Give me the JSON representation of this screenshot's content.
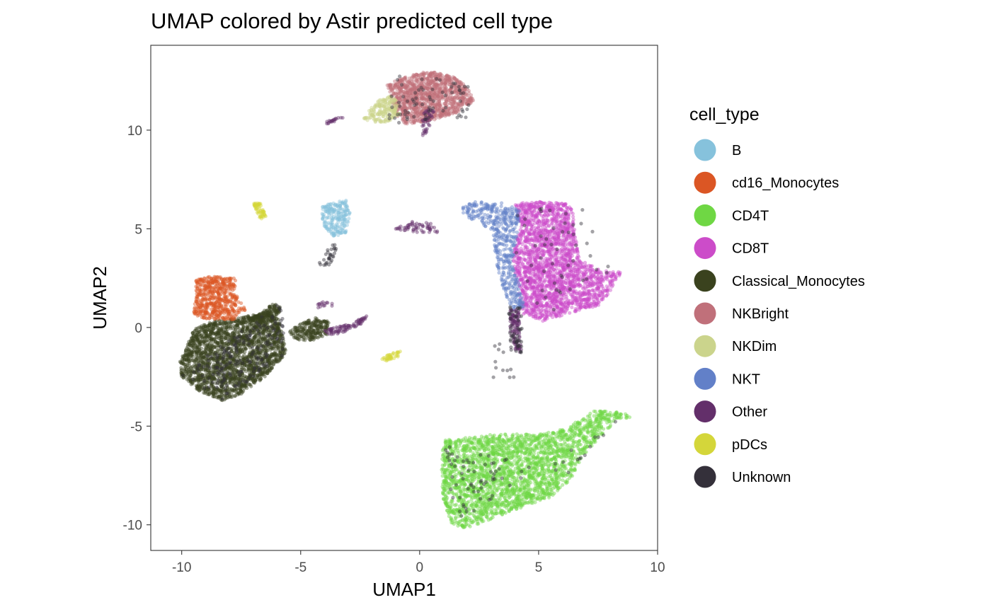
{
  "chart_data": {
    "type": "scatter",
    "title": "UMAP colored by Astir predicted cell type",
    "xlabel": "UMAP1",
    "ylabel": "UMAP2",
    "xlim": [
      -11.3,
      10.0
    ],
    "ylim": [
      -11.3,
      14.3
    ],
    "xticks": [
      -10,
      -5,
      0,
      5,
      10
    ],
    "xtick_labels": [
      "-10",
      "-5",
      "0",
      "5",
      "10"
    ],
    "yticks": [
      -10,
      -5,
      0,
      5,
      10
    ],
    "ytick_labels": [
      "-10",
      "-5",
      "0",
      "5",
      "10"
    ],
    "grid": false,
    "legend": {
      "title": "cell_type",
      "placement": "right",
      "entries": [
        {
          "label": "B",
          "color": "#86c2dc"
        },
        {
          "label": "cd16_Monocytes",
          "color": "#db5624"
        },
        {
          "label": "CD4T",
          "color": "#6fd744"
        },
        {
          "label": "CD8T",
          "color": "#cc4cc9"
        },
        {
          "label": "Classical_Monocytes",
          "color": "#3a421e"
        },
        {
          "label": "NKBright",
          "color": "#c0707a"
        },
        {
          "label": "NKDim",
          "color": "#cbd48c"
        },
        {
          "label": "NKT",
          "color": "#6280c8"
        },
        {
          "label": "Other",
          "color": "#632f6a"
        },
        {
          "label": "pDCs",
          "color": "#d4d63a"
        },
        {
          "label": "Unknown",
          "color": "#34303a"
        }
      ]
    },
    "series": [
      {
        "name": "Classical_Monocytes",
        "color": "#3a421e",
        "regions": [
          {
            "polygon": [
              [
                -9.8,
                -1.0
              ],
              [
                -9.5,
                -0.1
              ],
              [
                -8.8,
                0.3
              ],
              [
                -7.5,
                0.5
              ],
              [
                -6.4,
                0.8
              ],
              [
                -5.9,
                0.4
              ],
              [
                -5.6,
                -1.3
              ],
              [
                -6.5,
                -2.5
              ],
              [
                -7.5,
                -3.4
              ],
              [
                -8.3,
                -3.7
              ],
              [
                -9.3,
                -3.2
              ],
              [
                -10.0,
                -2.5
              ],
              [
                -10.1,
                -1.8
              ]
            ],
            "n": 2200
          },
          {
            "polygon": [
              [
                -7.2,
                0.4
              ],
              [
                -6.6,
                0.8
              ],
              [
                -6.2,
                1.2
              ],
              [
                -5.8,
                1.1
              ],
              [
                -6.0,
                0.5
              ],
              [
                -6.6,
                0.2
              ]
            ],
            "n": 150
          },
          {
            "polygon": [
              [
                -5.5,
                -0.2
              ],
              [
                -5.0,
                0.2
              ],
              [
                -4.4,
                0.5
              ],
              [
                -3.8,
                0.3
              ],
              [
                -3.9,
                -0.4
              ],
              [
                -4.6,
                -0.7
              ],
              [
                -5.3,
                -0.6
              ]
            ],
            "n": 220
          }
        ]
      },
      {
        "name": "cd16_Monocytes",
        "color": "#db5624",
        "regions": [
          {
            "polygon": [
              [
                -9.5,
                0.6
              ],
              [
                -9.4,
                1.7
              ],
              [
                -9.4,
                2.5
              ],
              [
                -8.6,
                2.6
              ],
              [
                -7.7,
                2.5
              ],
              [
                -7.8,
                1.8
              ],
              [
                -7.3,
                0.9
              ],
              [
                -7.8,
                0.4
              ],
              [
                -8.8,
                0.4
              ]
            ],
            "n": 550
          }
        ]
      },
      {
        "name": "NKBright",
        "color": "#c0707a",
        "regions": [
          {
            "polygon": [
              [
                -1.2,
                11.6
              ],
              [
                -1.4,
                12.3
              ],
              [
                -0.6,
                12.7
              ],
              [
                0.4,
                13.0
              ],
              [
                1.4,
                12.7
              ],
              [
                2.0,
                12.2
              ],
              [
                2.3,
                11.5
              ],
              [
                1.6,
                10.9
              ],
              [
                0.6,
                10.5
              ],
              [
                -0.6,
                10.3
              ],
              [
                -1.1,
                10.9
              ]
            ],
            "n": 1200
          }
        ]
      },
      {
        "name": "NKDim",
        "color": "#cbd48c",
        "regions": [
          {
            "polygon": [
              [
                -2.4,
                10.6
              ],
              [
                -2.0,
                11.2
              ],
              [
                -1.5,
                11.8
              ],
              [
                -1.0,
                11.6
              ],
              [
                -0.8,
                10.8
              ],
              [
                -1.4,
                10.4
              ],
              [
                -2.1,
                10.4
              ]
            ],
            "n": 200
          }
        ]
      },
      {
        "name": "B",
        "color": "#86c2dc",
        "regions": [
          {
            "polygon": [
              [
                -4.1,
                6.1
              ],
              [
                -3.6,
                6.4
              ],
              [
                -3.1,
                6.5
              ],
              [
                -2.9,
                5.8
              ],
              [
                -3.1,
                4.8
              ],
              [
                -3.6,
                4.6
              ],
              [
                -4.0,
                5.1
              ],
              [
                -4.1,
                5.6
              ]
            ],
            "n": 220
          }
        ]
      },
      {
        "name": "pDCs",
        "color": "#d4d63a",
        "regions": [
          {
            "polygon": [
              [
                -7.0,
                6.3
              ],
              [
                -6.7,
                6.3
              ],
              [
                -6.5,
                5.8
              ],
              [
                -6.4,
                5.5
              ],
              [
                -6.7,
                5.5
              ],
              [
                -6.9,
                5.9
              ]
            ],
            "n": 60
          },
          {
            "polygon": [
              [
                -1.6,
                -1.6
              ],
              [
                -1.2,
                -1.3
              ],
              [
                -0.8,
                -1.2
              ],
              [
                -0.9,
                -1.5
              ],
              [
                -1.4,
                -1.7
              ]
            ],
            "n": 40
          }
        ]
      },
      {
        "name": "CD8T",
        "color": "#cc4cc9",
        "regions": [
          {
            "polygon": [
              [
                4.0,
                6.3
              ],
              [
                5.6,
                6.4
              ],
              [
                6.4,
                6.2
              ],
              [
                6.5,
                5.2
              ],
              [
                6.7,
                3.5
              ],
              [
                7.6,
                2.9
              ],
              [
                8.5,
                2.8
              ],
              [
                8.0,
                1.8
              ],
              [
                7.5,
                1.1
              ],
              [
                6.5,
                0.8
              ],
              [
                5.2,
                0.3
              ],
              [
                4.3,
                0.7
              ],
              [
                4.1,
                2.2
              ],
              [
                3.9,
                3.6
              ],
              [
                4.2,
                5.0
              ]
            ],
            "n": 2200
          }
        ]
      },
      {
        "name": "NKT",
        "color": "#6280c8",
        "regions": [
          {
            "polygon": [
              [
                1.7,
                6.0
              ],
              [
                2.3,
                6.4
              ],
              [
                3.6,
                6.3
              ],
              [
                4.2,
                5.9
              ],
              [
                4.1,
                4.6
              ],
              [
                3.9,
                3.3
              ],
              [
                4.2,
                2.2
              ],
              [
                4.4,
                1.0
              ],
              [
                3.9,
                0.9
              ],
              [
                3.5,
                2.0
              ],
              [
                3.2,
                3.4
              ],
              [
                3.1,
                4.7
              ],
              [
                2.6,
                5.3
              ],
              [
                1.9,
                5.6
              ]
            ],
            "n": 480
          }
        ]
      },
      {
        "name": "CD4T",
        "color": "#6fd744",
        "regions": [
          {
            "polygon": [
              [
                1.0,
                -5.7
              ],
              [
                0.9,
                -7.2
              ],
              [
                1.0,
                -8.8
              ],
              [
                1.3,
                -9.9
              ],
              [
                1.9,
                -10.2
              ],
              [
                2.6,
                -9.9
              ],
              [
                4.1,
                -9.2
              ],
              [
                5.5,
                -8.6
              ],
              [
                6.3,
                -7.8
              ],
              [
                6.9,
                -6.5
              ],
              [
                7.6,
                -5.5
              ],
              [
                8.3,
                -4.7
              ],
              [
                9.0,
                -4.5
              ],
              [
                8.5,
                -4.3
              ],
              [
                7.3,
                -4.2
              ],
              [
                6.2,
                -5.1
              ],
              [
                5.0,
                -5.4
              ],
              [
                3.2,
                -5.4
              ],
              [
                1.8,
                -5.6
              ]
            ],
            "n": 2600
          }
        ]
      },
      {
        "name": "Other",
        "color": "#632f6a",
        "regions": [
          {
            "polygon": [
              [
                3.8,
                0.9
              ],
              [
                4.2,
                0.9
              ],
              [
                4.2,
                -0.4
              ],
              [
                4.3,
                -1.3
              ],
              [
                4.0,
                -1.2
              ],
              [
                3.8,
                -0.2
              ]
            ],
            "n": 120
          },
          {
            "polygon": [
              [
                -4.0,
                -0.1
              ],
              [
                -3.2,
                0.1
              ],
              [
                -2.2,
                0.6
              ],
              [
                -2.4,
                0.2
              ],
              [
                -3.3,
                -0.3
              ],
              [
                -3.9,
                -0.4
              ]
            ],
            "n": 90
          },
          {
            "polygon": [
              [
                0.1,
                11.0
              ],
              [
                0.7,
                11.1
              ],
              [
                0.4,
                10.0
              ],
              [
                0.1,
                9.6
              ]
            ],
            "n": 40
          },
          {
            "polygon": [
              [
                -4.0,
                10.4
              ],
              [
                -3.3,
                10.7
              ],
              [
                -3.2,
                10.6
              ],
              [
                -3.9,
                10.3
              ]
            ],
            "n": 20
          },
          {
            "polygon": [
              [
                -1.2,
                5.0
              ],
              [
                -0.6,
                5.4
              ],
              [
                0.5,
                5.3
              ],
              [
                0.8,
                4.8
              ],
              [
                -0.3,
                4.8
              ]
            ],
            "n": 60
          },
          {
            "polygon": [
              [
                -4.4,
                1.3
              ],
              [
                -3.8,
                1.4
              ],
              [
                -3.6,
                1.1
              ],
              [
                -4.3,
                1.0
              ]
            ],
            "n": 15
          }
        ]
      },
      {
        "name": "Unknown",
        "color": "#34303a",
        "regions": [
          {
            "polygon": [
              [
                -10.0,
                -2.4
              ],
              [
                -5.8,
                1.3
              ],
              [
                -5.6,
                -1.3
              ],
              [
                -8.3,
                -3.7
              ]
            ],
            "n": 180
          },
          {
            "polygon": [
              [
                -1.4,
                10.3
              ],
              [
                2.3,
                10.5
              ],
              [
                2.0,
                12.6
              ],
              [
                -1.2,
                12.8
              ]
            ],
            "n": 70
          },
          {
            "polygon": [
              [
                1.5,
                -9.9
              ],
              [
                8.5,
                -4.4
              ],
              [
                6.3,
                -7.5
              ],
              [
                1.0,
                -5.8
              ]
            ],
            "n": 80
          },
          {
            "polygon": [
              [
                3.7,
                1.1
              ],
              [
                4.3,
                1.1
              ],
              [
                4.3,
                -1.3
              ],
              [
                3.8,
                -1.2
              ]
            ],
            "n": 50
          },
          {
            "polygon": [
              [
                -4.3,
                3.1
              ],
              [
                -3.9,
                4.0
              ],
              [
                -3.4,
                4.4
              ],
              [
                -3.7,
                3.2
              ]
            ],
            "n": 30
          },
          {
            "polygon": [
              [
                3.0,
                -0.8
              ],
              [
                4.0,
                -0.8
              ],
              [
                4.0,
                -2.8
              ],
              [
                3.0,
                -2.8
              ]
            ],
            "n": 12
          },
          {
            "polygon": [
              [
                4.0,
                6.3
              ],
              [
                7.0,
                6.3
              ],
              [
                8.4,
                2.8
              ],
              [
                5.2,
                0.4
              ],
              [
                4.1,
                2.2
              ]
            ],
            "n": 50
          }
        ]
      }
    ]
  }
}
